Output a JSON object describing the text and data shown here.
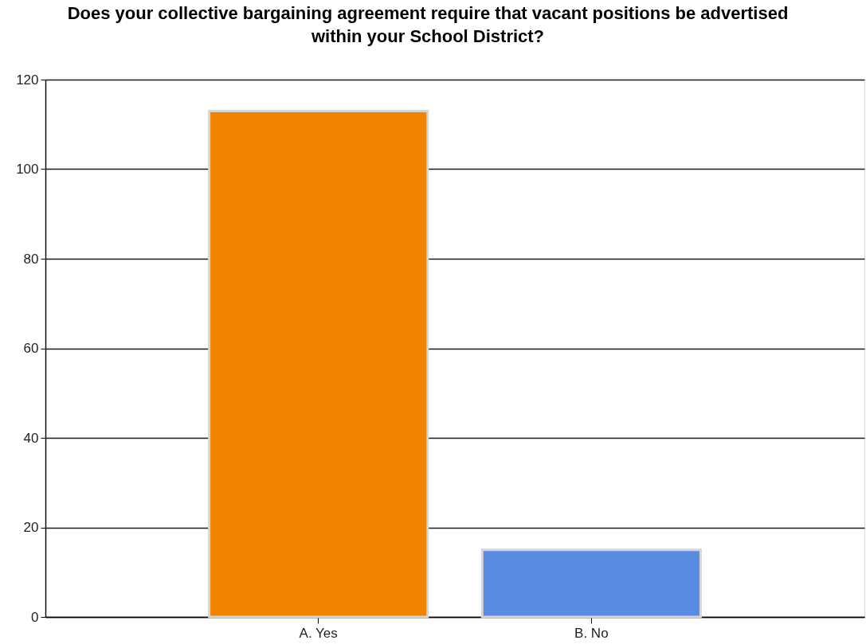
{
  "chart_data": {
    "type": "bar",
    "title": "Does your collective bargaining agreement require that vacant positions be advertised\nwithin your School District?",
    "categories": [
      "A. Yes",
      "B. No"
    ],
    "values": [
      113,
      15
    ],
    "colors": [
      "#f08400",
      "#5a8be2"
    ],
    "ylim": [
      0,
      120
    ],
    "yticks": [
      0,
      20,
      40,
      60,
      80,
      100,
      120
    ],
    "grid": "y"
  }
}
